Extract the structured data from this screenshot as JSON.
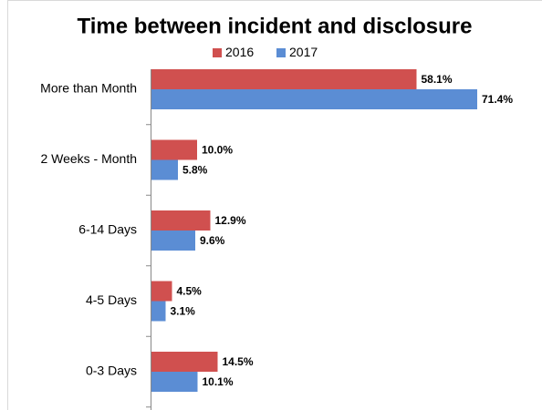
{
  "chart_data": {
    "type": "bar",
    "orientation": "horizontal",
    "title": "Time between incident and disclosure",
    "categories": [
      "More than Month",
      "2 Weeks - Month",
      "6-14 Days",
      "4-5 Days",
      "0-3 Days"
    ],
    "series": [
      {
        "name": "2016",
        "color": "#d0504f",
        "values": [
          58.1,
          10.0,
          12.9,
          4.5,
          14.5
        ],
        "value_labels": [
          "58.1%",
          "10.0%",
          "12.9%",
          "4.5%",
          "14.5%"
        ]
      },
      {
        "name": "2017",
        "color": "#5b8dd4",
        "values": [
          71.4,
          5.8,
          9.6,
          3.1,
          10.1
        ],
        "value_labels": [
          "71.4%",
          "5.8%",
          "9.6%",
          "3.1%",
          "10.1%"
        ]
      }
    ],
    "legend": "top"
  }
}
